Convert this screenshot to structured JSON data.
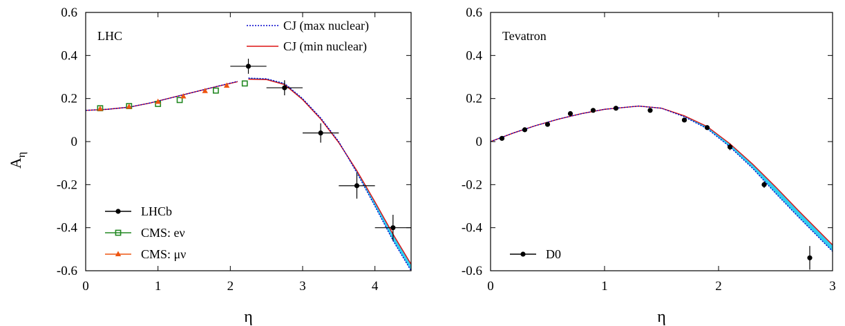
{
  "y_axis_label": "A",
  "y_axis_label_sub": "η",
  "chart_data": [
    {
      "type": "line",
      "panel_label": "LHC",
      "xlabel": "η",
      "xlim": [
        0,
        4.5
      ],
      "ylim": [
        -0.6,
        0.6
      ],
      "x_ticks": [
        0,
        1,
        2,
        3,
        4
      ],
      "x_tick_labels": [
        "0",
        "1",
        "2",
        "3",
        "4"
      ],
      "y_ticks": [
        -0.6,
        -0.4,
        -0.2,
        0,
        0.2,
        0.4,
        0.6
      ],
      "y_tick_labels": [
        "-0.6",
        "-0.4",
        "-0.2",
        "0",
        "0.2",
        "0.4",
        "0.6"
      ],
      "grid": false,
      "top_legend": [
        {
          "name": "CJ (max nuclear)",
          "style": "dotted",
          "color": "#0000cc"
        },
        {
          "name": "CJ (min nuclear)",
          "style": "solid",
          "color": "#dd1111"
        }
      ],
      "bottom_legend": [
        {
          "name": "LHCb",
          "marker": "circle",
          "color": "#000000"
        },
        {
          "name": "CMS: eν",
          "marker": "square-open",
          "color": "#228822"
        },
        {
          "name": "CMS: μν",
          "marker": "triangle",
          "color": "#ee5511"
        }
      ],
      "band_color": "#33ccee",
      "curve_segments": [
        {
          "x": [
            0.0,
            0.3,
            0.6,
            0.9,
            1.2,
            1.5,
            1.8,
            2.1
          ],
          "y_max": [
            0.145,
            0.15,
            0.16,
            0.18,
            0.205,
            0.23,
            0.255,
            0.28
          ],
          "y_min": [
            0.145,
            0.15,
            0.16,
            0.18,
            0.205,
            0.23,
            0.255,
            0.278
          ]
        },
        {
          "x": [
            2.25,
            2.5,
            2.75,
            3.0,
            3.25,
            3.5,
            3.75,
            4.0,
            4.25,
            4.5
          ],
          "y_max": [
            0.295,
            0.292,
            0.27,
            0.2,
            0.11,
            0.0,
            -0.145,
            -0.3,
            -0.46,
            -0.6
          ],
          "y_min": [
            0.29,
            0.288,
            0.265,
            0.195,
            0.105,
            -0.005,
            -0.135,
            -0.28,
            -0.43,
            -0.57
          ]
        }
      ],
      "series": [
        {
          "name": "LHCb",
          "x": [
            2.25,
            2.75,
            3.25,
            3.75,
            4.25
          ],
          "y": [
            0.35,
            0.25,
            0.04,
            -0.205,
            -0.4
          ],
          "yerr": [
            0.035,
            0.035,
            0.045,
            0.06,
            0.06
          ],
          "xerr": [
            0.25,
            0.25,
            0.25,
            0.25,
            0.25
          ]
        },
        {
          "name": "CMS: eν",
          "x": [
            0.2,
            0.6,
            1.0,
            1.3,
            1.8,
            2.2
          ],
          "y": [
            0.155,
            0.165,
            0.175,
            0.193,
            0.237,
            0.27
          ]
        },
        {
          "name": "CMS: μν",
          "x": [
            0.2,
            0.6,
            1.0,
            1.35,
            1.65,
            1.95
          ],
          "y": [
            0.152,
            0.162,
            0.185,
            0.21,
            0.235,
            0.26
          ]
        }
      ]
    },
    {
      "type": "line",
      "panel_label": "Tevatron",
      "xlabel": "η",
      "xlim": [
        0,
        3
      ],
      "ylim": [
        -0.6,
        0.6
      ],
      "x_ticks": [
        0,
        1,
        2,
        3
      ],
      "x_tick_labels": [
        "0",
        "1",
        "2",
        "3"
      ],
      "y_ticks": [
        -0.6,
        -0.4,
        -0.2,
        0,
        0.2,
        0.4,
        0.6
      ],
      "y_tick_labels": [
        "-0.6",
        "-0.4",
        "-0.2",
        "0",
        "0.2",
        "0.4",
        "0.6"
      ],
      "grid": false,
      "bottom_legend": [
        {
          "name": "D0",
          "marker": "circle",
          "color": "#000000"
        }
      ],
      "band_color": "#33ccee",
      "curve_segments": [
        {
          "x": [
            0.0,
            0.2,
            0.4,
            0.6,
            0.8,
            1.0,
            1.3,
            1.5,
            1.7,
            1.9,
            2.1,
            2.3,
            2.5,
            2.7,
            3.0
          ],
          "y_max": [
            0.0,
            0.04,
            0.075,
            0.105,
            0.13,
            0.15,
            0.165,
            0.155,
            0.115,
            0.06,
            -0.025,
            -0.125,
            -0.24,
            -0.35,
            -0.51
          ],
          "y_min": [
            0.0,
            0.04,
            0.075,
            0.105,
            0.13,
            0.15,
            0.165,
            0.155,
            0.12,
            0.07,
            -0.01,
            -0.105,
            -0.21,
            -0.32,
            -0.48
          ]
        }
      ],
      "series": [
        {
          "name": "D0",
          "x": [
            0.1,
            0.3,
            0.5,
            0.7,
            0.9,
            1.1,
            1.4,
            1.7,
            1.9,
            2.1,
            2.4,
            2.8
          ],
          "y": [
            0.015,
            0.055,
            0.08,
            0.13,
            0.145,
            0.155,
            0.145,
            0.1,
            0.065,
            -0.025,
            -0.2,
            -0.54
          ],
          "yerr": [
            0.01,
            0.01,
            0.01,
            0.01,
            0.01,
            0.01,
            0.01,
            0.01,
            0.01,
            0.015,
            0.015,
            0.055
          ]
        }
      ]
    }
  ]
}
